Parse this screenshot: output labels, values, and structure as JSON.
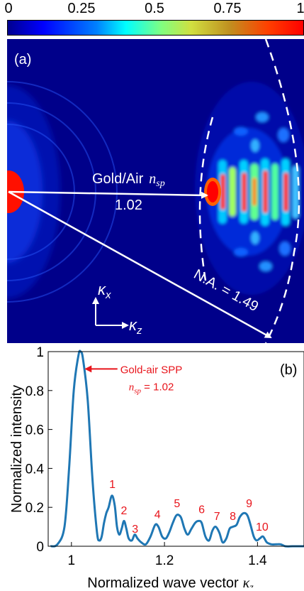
{
  "colorbar": {
    "ticks": [
      "0",
      "0.25",
      "0.5",
      "0.75",
      "1"
    ]
  },
  "panel_a": {
    "label": "(a)",
    "gold_air_text": "Gold/Air",
    "nsp_symbol": "n",
    "nsp_sub": "sp",
    "nsp_value": "1.02",
    "na_label": "N.A. = 1.49",
    "kx_symbol": "κ",
    "kx_sub": "x",
    "kz_symbol": "κ",
    "kz_sub": "z"
  },
  "chart_data": {
    "type": "line",
    "panel_label": "(b)",
    "xlabel": "Normalized wave vector",
    "xlabel_symbol": "κ",
    "xlabel_sub": "z",
    "ylabel": "Normalized intensity",
    "xlim": [
      0.95,
      1.5
    ],
    "ylim": [
      0,
      1
    ],
    "xticks": [
      "1",
      "1.2",
      "1.4"
    ],
    "xtick_values": [
      1.0,
      1.2,
      1.4
    ],
    "yticks": [
      "0",
      "0.2",
      "0.4",
      "0.6",
      "0.8",
      "1"
    ],
    "ytick_values": [
      0,
      0.2,
      0.4,
      0.6,
      0.8,
      1.0
    ],
    "series": [
      {
        "color": "#1f77b4",
        "x": [
          0.955,
          0.97,
          0.985,
          0.995,
          1.005,
          1.015,
          1.02,
          1.025,
          1.035,
          1.045,
          1.055,
          1.06,
          1.065,
          1.07,
          1.075,
          1.08,
          1.087,
          1.093,
          1.098,
          1.103,
          1.108,
          1.113,
          1.118,
          1.123,
          1.13,
          1.136,
          1.142,
          1.15,
          1.16,
          1.17,
          1.18,
          1.187,
          1.195,
          1.203,
          1.21,
          1.218,
          1.226,
          1.235,
          1.243,
          1.25,
          1.258,
          1.266,
          1.273,
          1.28,
          1.288,
          1.296,
          1.303,
          1.31,
          1.318,
          1.325,
          1.333,
          1.34,
          1.347,
          1.355,
          1.362,
          1.37,
          1.378,
          1.385,
          1.392,
          1.398,
          1.405,
          1.412,
          1.42,
          1.43,
          1.44,
          1.45,
          1.46,
          1.475,
          1.49,
          1.5
        ],
        "y": [
          0.0,
          0.01,
          0.1,
          0.4,
          0.8,
          0.98,
          1.0,
          0.96,
          0.75,
          0.35,
          0.07,
          0.03,
          0.05,
          0.12,
          0.17,
          0.2,
          0.26,
          0.21,
          0.1,
          0.06,
          0.09,
          0.13,
          0.09,
          0.04,
          0.03,
          0.06,
          0.04,
          0.02,
          0.01,
          0.05,
          0.11,
          0.1,
          0.05,
          0.04,
          0.07,
          0.12,
          0.16,
          0.15,
          0.09,
          0.06,
          0.09,
          0.12,
          0.13,
          0.12,
          0.05,
          0.03,
          0.08,
          0.1,
          0.07,
          0.02,
          0.04,
          0.09,
          0.1,
          0.11,
          0.15,
          0.17,
          0.16,
          0.11,
          0.05,
          0.03,
          0.04,
          0.05,
          0.02,
          0.01,
          0.01,
          0.01,
          0.0,
          0.0,
          0.0,
          0.0
        ]
      }
    ],
    "annotations": [
      {
        "text": "Gold-air SPP",
        "x": 1.105,
        "y": 0.955
      },
      {
        "text": "1",
        "x": 1.088,
        "y": 0.3
      },
      {
        "text": "2",
        "x": 1.113,
        "y": 0.165
      },
      {
        "text": "3",
        "x": 1.137,
        "y": 0.07
      },
      {
        "text": "4",
        "x": 1.185,
        "y": 0.145
      },
      {
        "text": "5",
        "x": 1.227,
        "y": 0.2
      },
      {
        "text": "6",
        "x": 1.28,
        "y": 0.17
      },
      {
        "text": "7",
        "x": 1.313,
        "y": 0.135
      },
      {
        "text": "8",
        "x": 1.347,
        "y": 0.135
      },
      {
        "text": "9",
        "x": 1.382,
        "y": 0.2
      },
      {
        "text": "10",
        "x": 1.41,
        "y": 0.08
      }
    ],
    "annotation_nsp": {
      "symbol": "n",
      "sub": "sp",
      "value": " = 1.02"
    },
    "annotation_color": "#e8141b"
  }
}
